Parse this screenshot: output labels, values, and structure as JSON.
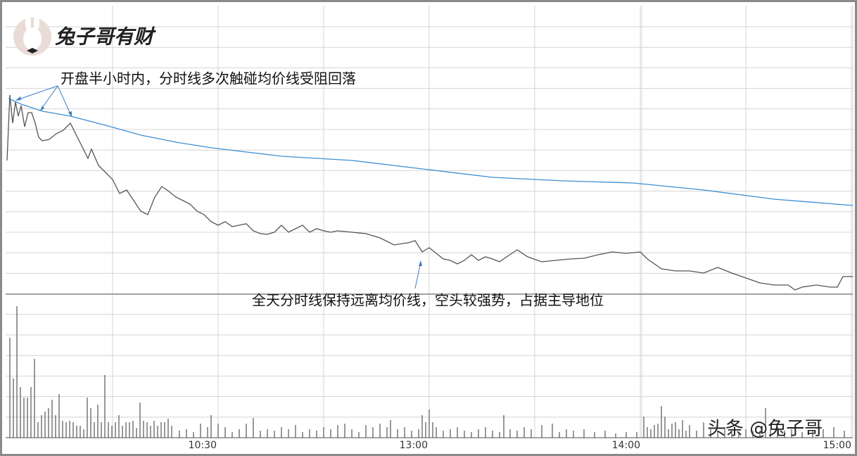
{
  "logo": "兔子哥有财",
  "watermark": "头条 @兔子哥",
  "chart_data": [
    {
      "type": "line",
      "annotations": [
        "开盘半小时内，分时线多次触碰均价线受阻回落",
        "全天分时线保持远离均价线，空头较强势，占据主导地位"
      ],
      "xlim": [
        0,
        240.8
      ],
      "ylim": [
        0,
        410
      ],
      "series": [
        {
          "color": "#555555",
          "x": [
            0.4,
            1.2,
            2,
            2.8,
            3.6,
            4.4,
            5.4,
            6.4,
            7.4,
            8.4,
            9.4,
            10.4,
            12.4,
            14.4,
            16.4,
            18.4,
            20.4,
            22.4,
            23.4,
            24.4,
            26.4,
            28.4,
            30.4,
            32.4,
            34.4,
            36.4,
            38.4,
            40.4,
            42.4,
            44.4,
            46.4,
            48.4,
            50.4,
            52.4,
            54.4,
            56.4,
            58.4,
            60.4,
            62.4,
            64.4,
            66.4,
            68.4,
            70.4,
            72.4,
            74.4,
            76.4,
            78.4,
            80.4,
            82.4,
            84.4,
            86.4,
            88.4,
            90.4,
            92.4,
            94.4,
            98.4,
            102.4,
            106.4,
            110.4,
            114.4,
            116.4,
            118.4,
            120.4,
            122.4,
            124.4,
            126.4,
            128.4,
            130.4,
            132.4,
            134.4,
            136.4,
            138.4,
            140.4,
            142.4,
            145.4,
            148.4,
            152.4,
            156.4,
            160.4,
            164.4,
            168.4,
            172.4,
            176.4,
            180.4,
            182.4,
            186.4,
            190.4,
            194.4,
            198.4,
            202.4,
            206.4,
            210.4,
            214.4,
            218.4,
            222.4,
            224.4,
            226.4,
            230.4,
            234.4,
            236.4,
            238,
            240.8
          ],
          "values": [
            190,
            283,
            243,
            273,
            253,
            268,
            238,
            258,
            258,
            243,
            223,
            218,
            220,
            228,
            233,
            243,
            223,
            203,
            193,
            206,
            183,
            173,
            163,
            143,
            148,
            133,
            118,
            113,
            138,
            153,
            146,
            138,
            133,
            128,
            118,
            113,
            103,
            98,
            103,
            96,
            98,
            100,
            90,
            86,
            85,
            88,
            98,
            88,
            93,
            98,
            88,
            93,
            90,
            88,
            90,
            88,
            86,
            80,
            70,
            73,
            76,
            60,
            66,
            58,
            50,
            48,
            43,
            48,
            56,
            48,
            53,
            50,
            46,
            53,
            63,
            53,
            46,
            48,
            50,
            51,
            56,
            60,
            58,
            60,
            50,
            36,
            33,
            33,
            30,
            38,
            30,
            23,
            16,
            13,
            13,
            6,
            10,
            13,
            10,
            10,
            25,
            25
          ]
        },
        {
          "color": "#3d8fd6",
          "x": [
            0.8,
            4.4,
            10.4,
            18.4,
            28.4,
            38.4,
            48.4,
            58.4,
            68.4,
            78.4,
            98.4,
            118.4,
            138.4,
            158.4,
            178.4,
            188.4,
            198.4,
            218.4,
            240.8
          ],
          "values": [
            278,
            270,
            260,
            253,
            240,
            226,
            216,
            208,
            202,
            196,
            190,
            178,
            166,
            161,
            158,
            153,
            148,
            135,
            126
          ]
        }
      ]
    },
    {
      "type": "bar",
      "color": "#555555",
      "xlim": [
        0,
        240.8
      ],
      "ylim": [
        0,
        200
      ],
      "xticks": [
        {
          "value": 60.4,
          "label": "10:30"
        },
        {
          "value": 120.4,
          "label": "13:00"
        },
        {
          "value": 180.8,
          "label": "14:00"
        },
        {
          "value": 240.8,
          "label": "15:00"
        }
      ],
      "x": [
        1.2,
        2.2,
        3.2,
        4.2,
        5.2,
        6.2,
        7.2,
        8.2,
        9.2,
        10.2,
        11.2,
        12.2,
        13.2,
        14.2,
        15.2,
        16.2,
        17.2,
        18.2,
        19.2,
        20.2,
        21.2,
        22.2,
        23.2,
        24.2,
        25.2,
        26.2,
        27.2,
        28.2,
        29.2,
        30.2,
        31.2,
        32.2,
        33.2,
        34.2,
        35.2,
        36.2,
        37.2,
        38.2,
        39.2,
        40.2,
        41.2,
        42.2,
        43.2,
        44.2,
        45.2,
        46.2,
        47.2,
        49.4,
        51.4,
        53.4,
        55.4,
        57.4,
        58.4,
        60.4,
        62.4,
        64.4,
        66.4,
        68.4,
        70.4,
        72.4,
        74.4,
        76.4,
        78.4,
        80.4,
        82.4,
        84.4,
        86.4,
        88.4,
        90.4,
        92.4,
        94.4,
        96.4,
        98.4,
        100.4,
        102.4,
        104.4,
        106.4,
        108.4,
        109.4,
        111.4,
        113.4,
        115.4,
        117.4,
        118.4,
        119.4,
        120.4,
        121.4,
        122.4,
        124.4,
        126.4,
        128.4,
        130.4,
        132.4,
        134.4,
        136.4,
        138.4,
        140.4,
        141.6,
        143.4,
        145.4,
        147.4,
        149.4,
        152.4,
        155.4,
        157.4,
        159.4,
        161.4,
        164.4,
        167.4,
        170.4,
        173.4,
        176.4,
        179.4,
        181.4,
        182.4,
        183.4,
        184.4,
        185.4,
        186.4,
        187.4,
        188.4,
        189.4,
        190.4,
        191.4,
        192.4,
        193.4,
        194.4,
        196.4,
        198.4,
        200.4,
        202.4,
        204.4,
        206.4,
        208.4,
        210.4,
        212.4,
        214.4,
        216,
        217.4,
        219.4,
        221.4,
        223.4,
        226.4,
        229.4,
        232.4,
        235.4,
        238.4
      ],
      "values": [
        142,
        84,
        187,
        72,
        57,
        57,
        72,
        112,
        22,
        32,
        37,
        42,
        54,
        32,
        62,
        24,
        22,
        24,
        22,
        17,
        17,
        12,
        57,
        42,
        22,
        47,
        22,
        89,
        22,
        17,
        22,
        32,
        17,
        22,
        22,
        24,
        14,
        50,
        24,
        22,
        17,
        24,
        17,
        22,
        22,
        27,
        17,
        10,
        12,
        8,
        20,
        15,
        32,
        20,
        15,
        8,
        12,
        20,
        28,
        10,
        12,
        10,
        15,
        12,
        18,
        8,
        12,
        10,
        15,
        12,
        18,
        20,
        12,
        8,
        18,
        15,
        20,
        15,
        25,
        12,
        15,
        10,
        12,
        32,
        22,
        40,
        22,
        15,
        10,
        12,
        15,
        10,
        8,
        12,
        15,
        10,
        8,
        32,
        12,
        10,
        15,
        12,
        18,
        20,
        8,
        12,
        10,
        12,
        8,
        10,
        6,
        8,
        8,
        30,
        15,
        12,
        18,
        20,
        45,
        30,
        12,
        20,
        22,
        12,
        25,
        10,
        18,
        10,
        22,
        12,
        10,
        15,
        12,
        8,
        12,
        10,
        10,
        42,
        12,
        15,
        10,
        12,
        8,
        10,
        12,
        15,
        10
      ]
    }
  ]
}
